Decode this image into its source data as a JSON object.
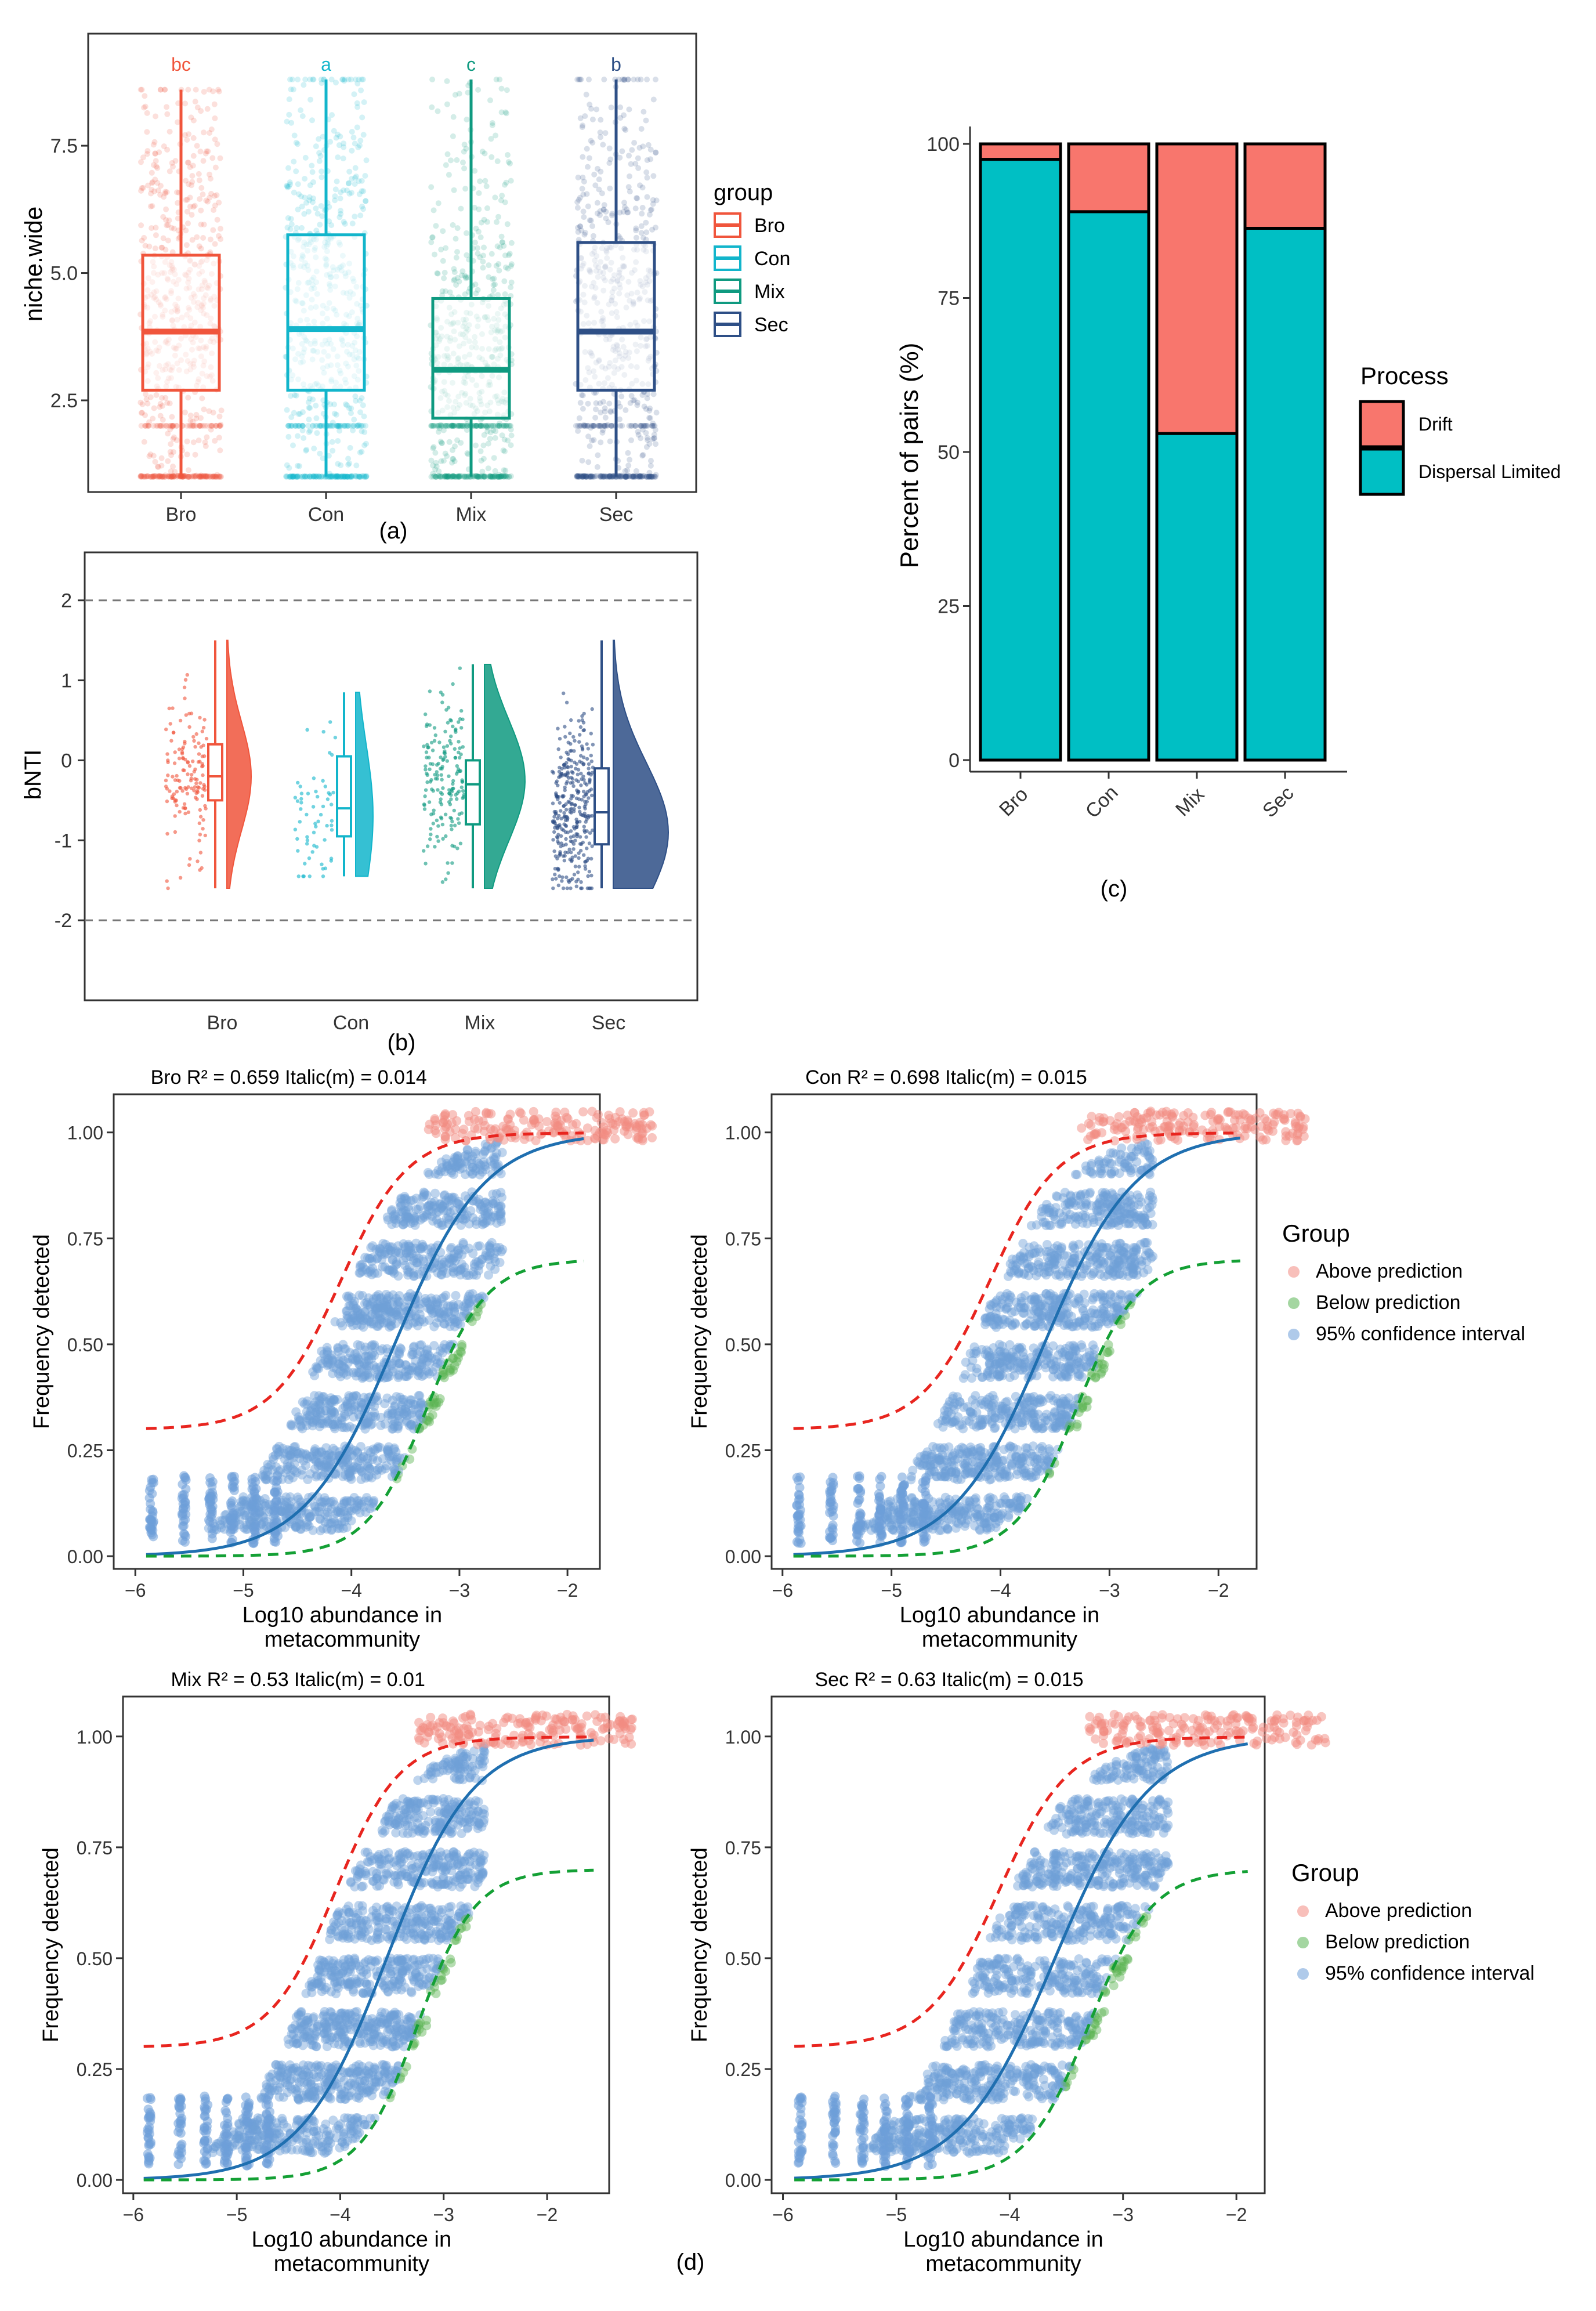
{
  "colors": {
    "Bro": "#f0553c",
    "Con": "#12b5cb",
    "Mix": "#0f9a80",
    "Sec": "#2e4f86",
    "drift": "#f8766d",
    "dispersal": "#00bfc4",
    "above": "#f28b82",
    "below": "#5ab453",
    "ci": "#6e9fd8",
    "fit": "#1f6fb0",
    "upper": "#e8251f",
    "lower": "#14a035"
  },
  "panels": {
    "a": "(a)",
    "b": "(b)",
    "c": "(c)",
    "d": "(d)"
  },
  "chart_data": [
    {
      "id": "niche-boxplot",
      "type": "box",
      "ylabel": "niche.wide",
      "categories": [
        "Bro",
        "Con",
        "Mix",
        "Sec"
      ],
      "ylim": [
        0.7,
        9.7
      ],
      "yticks": [
        2.5,
        5.0,
        7.5
      ],
      "ytick_labels": [
        "2.5",
        "5.0",
        "7.5"
      ],
      "boxes": [
        {
          "name": "Bro",
          "min": 1.0,
          "q1": 2.7,
          "median": 3.85,
          "q3": 5.35,
          "max": 8.6
        },
        {
          "name": "Con",
          "min": 1.0,
          "q1": 2.7,
          "median": 3.9,
          "q3": 5.75,
          "max": 8.8
        },
        {
          "name": "Mix",
          "min": 1.0,
          "q1": 2.15,
          "median": 3.1,
          "q3": 4.5,
          "max": 8.8
        },
        {
          "name": "Sec",
          "min": 1.0,
          "q1": 2.7,
          "median": 3.85,
          "q3": 5.6,
          "max": 8.8
        }
      ],
      "letters": [
        "bc",
        "a",
        "c",
        "b"
      ],
      "legend": {
        "title": "group",
        "items": [
          "Bro",
          "Con",
          "Mix",
          "Sec"
        ]
      }
    },
    {
      "id": "bnti-raincloud",
      "type": "raincloud",
      "ylabel": "bNTI",
      "categories": [
        "Bro",
        "Con",
        "Mix",
        "Sec"
      ],
      "ylim": [
        -3.0,
        2.6
      ],
      "yticks": [
        -2,
        -1,
        0,
        1,
        2
      ],
      "ytick_labels": [
        "-2",
        "-1",
        "0",
        "1",
        "2"
      ],
      "reference_lines": [
        2,
        -2
      ],
      "boxes": [
        {
          "name": "Bro",
          "min": -1.6,
          "q1": -0.5,
          "median": -0.2,
          "q3": 0.2,
          "max": 1.5,
          "mode": -0.2
        },
        {
          "name": "Con",
          "min": -1.45,
          "q1": -0.95,
          "median": -0.6,
          "q3": 0.05,
          "max": 0.85,
          "mode": -0.7
        },
        {
          "name": "Mix",
          "min": -1.6,
          "q1": -0.8,
          "median": -0.3,
          "q3": 0.0,
          "max": 1.2,
          "mode": -0.25
        },
        {
          "name": "Sec",
          "min": -1.6,
          "q1": -1.05,
          "median": -0.65,
          "q3": -0.1,
          "max": 1.5,
          "mode": -0.9
        }
      ]
    },
    {
      "id": "process-stacked-bar",
      "type": "bar",
      "stacked": true,
      "ylabel": "Percent of pairs (%)",
      "categories": [
        "Bro",
        "Con",
        "Mix",
        "Sec"
      ],
      "ylim": [
        0,
        100
      ],
      "yticks": [
        0,
        25,
        50,
        75,
        100
      ],
      "ytick_labels": [
        "0",
        "25",
        "50",
        "75",
        "100"
      ],
      "series": [
        {
          "name": "Dispersal Limited",
          "values": [
            97.5,
            89.0,
            53.0,
            86.3
          ]
        },
        {
          "name": "Drift",
          "values": [
            2.5,
            11.0,
            47.0,
            13.7
          ]
        }
      ],
      "legend": {
        "title": "Process",
        "items": [
          "Drift",
          "Dispersal Limited"
        ]
      }
    },
    {
      "id": "ncm-fits",
      "type": "scatter",
      "xlabel_line1": "Log10 abundance in",
      "xlabel_line2": "metacommunity",
      "ylabel": "Frequency detected",
      "ylim": [
        -0.03,
        1.09
      ],
      "yticks": [
        0.0,
        0.25,
        0.5,
        0.75,
        1.0
      ],
      "ytick_labels": [
        "0.00",
        "0.25",
        "0.50",
        "0.75",
        "1.00"
      ],
      "xticks": [
        -6,
        -5,
        -4,
        -3,
        -2
      ],
      "xtick_labels": [
        "−6",
        "−5",
        "−4",
        "−3",
        "−2"
      ],
      "legend": {
        "title": "Group",
        "items": [
          "Above prediction",
          "Below prediction",
          "95% confidence interval"
        ]
      },
      "panels": [
        {
          "title": "Bro R² = 0.659  Italic(m) = 0.014",
          "xlim": [
            -6.2,
            -1.7
          ],
          "midpoint": -3.6,
          "r2": 0.659,
          "m": 0.014
        },
        {
          "title": "Con R² = 0.698  Italic(m) = 0.015",
          "xlim": [
            -6.1,
            -1.65
          ],
          "midpoint": -3.6,
          "r2": 0.698,
          "m": 0.015
        },
        {
          "title": "Mix R² = 0.53  Italic(m) = 0.01",
          "xlim": [
            -6.1,
            -1.4
          ],
          "midpoint": -3.55,
          "r2": 0.53,
          "m": 0.01
        },
        {
          "title": "Sec R² = 0.63  Italic(m) = 0.015",
          "xlim": [
            -6.1,
            -1.75
          ],
          "midpoint": -3.6,
          "r2": 0.63,
          "m": 0.015
        }
      ]
    }
  ]
}
